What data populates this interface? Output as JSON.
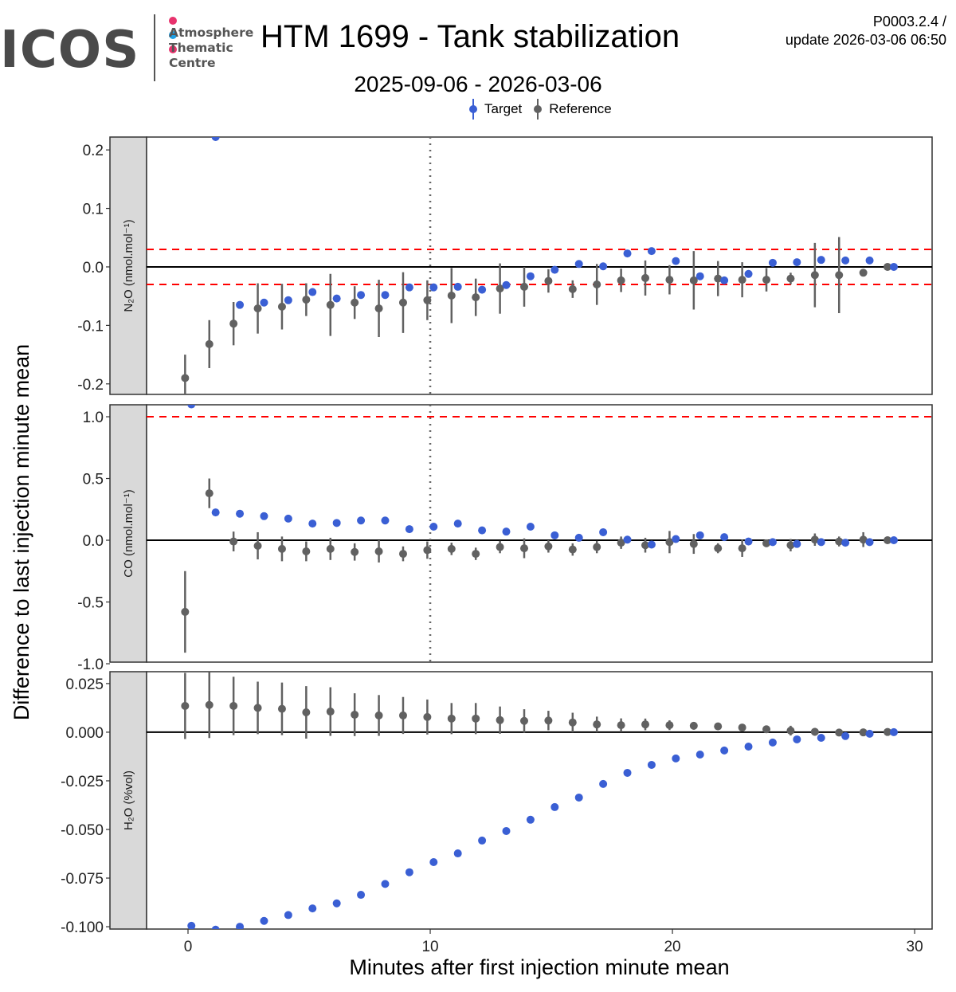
{
  "header": {
    "logo_text": "ICOS",
    "logo_subtitle": [
      "Atmosphere",
      "Thematic",
      "Centre"
    ],
    "title": "HTM 1699 - Tank stabilization",
    "subtitle": "2025-09-06 - 2026-03-06",
    "version": "P0003.2.4 /",
    "update": "update  2026-03-06 06:50"
  },
  "colors": {
    "target": "#3a5fd4",
    "reference": "#616161",
    "threshold": "#ff0000",
    "logo_dots": [
      "#e8336d",
      "#1ea0e6",
      "#e8336d"
    ]
  },
  "legend": {
    "target": "Target",
    "reference": "Reference"
  },
  "chart_data": {
    "type": "scatter",
    "xlabel": "Minutes after first injection minute mean",
    "ylabel": "Difference to last injection minute mean",
    "xlim": [
      -1.71,
      30.72
    ],
    "xticks": [
      0,
      10,
      20,
      30
    ],
    "vline": 10,
    "ref_x": [
      -0.12,
      0.88,
      1.88,
      2.88,
      3.88,
      4.88,
      5.88,
      6.88,
      7.88,
      8.88,
      9.88,
      10.88,
      11.88,
      12.88,
      13.88,
      14.88,
      15.88,
      16.88,
      17.88,
      18.88,
      19.88,
      20.88,
      21.88,
      22.88,
      23.88,
      24.88,
      25.88,
      26.88,
      27.88,
      28.88
    ],
    "target_x": [
      0.14,
      1.14,
      2.14,
      3.14,
      4.14,
      5.14,
      6.14,
      7.14,
      8.14,
      9.14,
      10.14,
      11.14,
      12.14,
      13.14,
      14.14,
      15.14,
      16.14,
      17.14,
      18.14,
      19.14,
      20.14,
      21.14,
      22.14,
      23.14,
      24.14,
      25.14,
      26.14,
      27.14,
      28.14,
      29.14
    ],
    "panels": [
      {
        "strip": "N₂O (nmol.mol⁻¹)",
        "ylim": [
          -0.218,
          0.222
        ],
        "yticks": [
          0.2,
          0.1,
          0.0,
          -0.1,
          -0.2
        ],
        "tick_labels": [
          "0.2",
          "0.1",
          "0.0",
          "-0.1",
          "-0.2"
        ],
        "thresholds": [
          0.03,
          -0.03
        ],
        "vline": true,
        "reference": [
          -0.19,
          -0.132,
          -0.097,
          -0.071,
          -0.068,
          -0.056,
          -0.065,
          -0.061,
          -0.071,
          -0.061,
          -0.057,
          -0.049,
          -0.052,
          -0.037,
          -0.034,
          -0.024,
          -0.038,
          -0.03,
          -0.023,
          -0.019,
          -0.022,
          -0.023,
          -0.02,
          -0.022,
          -0.022,
          -0.02,
          -0.014,
          -0.014,
          -0.01,
          0
        ],
        "reference_err": [
          0.04,
          0.041,
          0.037,
          0.043,
          0.039,
          0.028,
          0.053,
          0.028,
          0.049,
          0.052,
          0.034,
          0.047,
          0.032,
          0.043,
          0.034,
          0.02,
          0.015,
          0.035,
          0.02,
          0.03,
          0.025,
          0.05,
          0.03,
          0.03,
          0.02,
          0.01,
          0.055,
          0.065,
          0.005,
          0
        ],
        "target": [
          null,
          0.222,
          -0.065,
          -0.061,
          -0.057,
          -0.043,
          -0.054,
          -0.048,
          -0.048,
          -0.035,
          -0.035,
          -0.034,
          -0.039,
          -0.031,
          -0.016,
          -0.005,
          0.005,
          0.001,
          0.023,
          0.027,
          0.01,
          -0.016,
          -0.023,
          -0.012,
          0.007,
          0.008,
          0.012,
          0.011,
          0.011,
          0
        ]
      },
      {
        "strip": "CO (nmol.mol⁻¹)",
        "ylim": [
          -0.987,
          1.097
        ],
        "yticks": [
          1.0,
          0.5,
          0.0,
          -0.5,
          -1.0
        ],
        "tick_labels": [
          "1.0",
          "0.5",
          "0.0",
          "-0.5",
          "-1.0"
        ],
        "thresholds": [
          1.0,
          -1.0
        ],
        "vline": true,
        "reference": [
          -0.58,
          0.38,
          -0.01,
          -0.045,
          -0.07,
          -0.09,
          -0.07,
          -0.095,
          -0.09,
          -0.11,
          -0.08,
          -0.07,
          -0.11,
          -0.055,
          -0.065,
          -0.05,
          -0.075,
          -0.055,
          -0.02,
          -0.04,
          -0.015,
          -0.03,
          -0.065,
          -0.065,
          -0.025,
          -0.04,
          0.005,
          -0.01,
          0.005,
          0
        ],
        "reference_err": [
          0.33,
          0.12,
          0.08,
          0.11,
          0.1,
          0.08,
          0.09,
          0.07,
          0.09,
          0.06,
          0.07,
          0.05,
          0.05,
          0.05,
          0.08,
          0.05,
          0.05,
          0.05,
          0.05,
          0.06,
          0.09,
          0.08,
          0.04,
          0.07,
          0.02,
          0.05,
          0.05,
          0.04,
          0.06,
          0
        ],
        "target": [
          1.1,
          0.225,
          0.215,
          0.195,
          0.175,
          0.135,
          0.14,
          0.16,
          0.16,
          0.09,
          0.11,
          0.135,
          0.08,
          0.07,
          0.11,
          0.04,
          0.02,
          0.065,
          0.005,
          -0.035,
          0.01,
          0.04,
          0.025,
          -0.01,
          -0.015,
          -0.03,
          -0.015,
          -0.02,
          -0.015,
          0
        ]
      },
      {
        "strip": "H₂O (%vol)",
        "ylim": [
          -0.1012,
          0.0311
        ],
        "yticks": [
          0.025,
          0.0,
          -0.025,
          -0.05,
          -0.075,
          -0.1
        ],
        "tick_labels": [
          "0.025",
          "0.000",
          "-0.025",
          "-0.050",
          "-0.075",
          "-0.100"
        ],
        "thresholds": [],
        "vline": false,
        "reference": [
          0.0135,
          0.014,
          0.0135,
          0.0125,
          0.012,
          0.0102,
          0.0106,
          0.009,
          0.0086,
          0.0086,
          0.0078,
          0.007,
          0.007,
          0.0062,
          0.0058,
          0.006,
          0.005,
          0.004,
          0.0036,
          0.004,
          0.0036,
          0.0033,
          0.003,
          0.0024,
          0.0015,
          0.0008,
          0.0002,
          -0.0002,
          -0.0001,
          0.0001
        ],
        "reference_err": [
          0.017,
          0.017,
          0.015,
          0.0135,
          0.0135,
          0.0135,
          0.0125,
          0.011,
          0.0105,
          0.0095,
          0.009,
          0.008,
          0.008,
          0.007,
          0.006,
          0.005,
          0.005,
          0.004,
          0.0035,
          0.003,
          0.0025,
          0.002,
          0.0015,
          0.0015,
          0.0015,
          0.0025,
          0.002,
          0.0015,
          0,
          0
        ],
        "target": [
          -0.0995,
          -0.1015,
          -0.1,
          -0.097,
          -0.094,
          -0.0906,
          -0.088,
          -0.0836,
          -0.078,
          -0.072,
          -0.0668,
          -0.0623,
          -0.0557,
          -0.0508,
          -0.045,
          -0.0385,
          -0.0336,
          -0.0266,
          -0.0209,
          -0.0168,
          -0.0135,
          -0.0115,
          -0.0094,
          -0.0074,
          -0.0053,
          -0.0037,
          -0.0029,
          -0.002,
          -0.0008,
          0
        ]
      }
    ]
  }
}
